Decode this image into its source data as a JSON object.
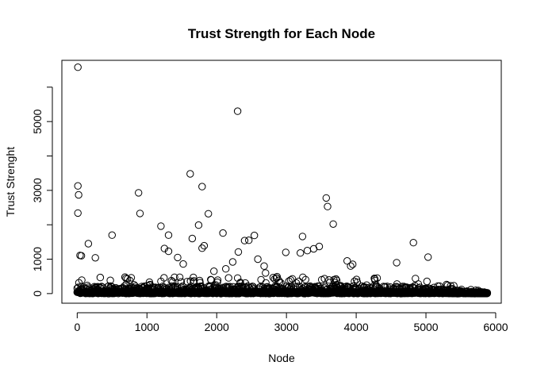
{
  "chart_data": {
    "type": "scatter",
    "title": "Trust Strength for Each Node",
    "xlabel": "Node",
    "ylabel": "Trust Strenght",
    "xlim": [
      -220,
      6080
    ],
    "ylim": [
      -280,
      6780
    ],
    "xticks": [
      0,
      1000,
      2000,
      3000,
      4000,
      5000,
      6000
    ],
    "yticks": [
      0,
      1000,
      3000,
      5000
    ],
    "ytick_marks": [
      0,
      1000,
      2000,
      3000,
      4000,
      5000,
      6000
    ],
    "grid": false,
    "marker": "open-circle",
    "n_nodes_approx": 5880,
    "highlighted_points": {
      "x": [
        10,
        2300,
        1620,
        10,
        1790,
        20,
        880,
        3570,
        10,
        3590,
        1880,
        900,
        3670,
        1200,
        1740,
        1310,
        2540,
        500,
        2460,
        2090,
        3230,
        1820,
        2400,
        3470,
        1650,
        4820,
        160,
        1790,
        1250,
        1310,
        2310,
        5030,
        40,
        2990,
        3200,
        3300,
        3390,
        260,
        1440,
        2590,
        4580,
        2230,
        3870,
        60,
        2680,
        1520,
        3950,
        3920,
        2130,
        1960,
        2700
      ],
      "y": [
        6580,
        5300,
        3480,
        3130,
        3110,
        2870,
        2930,
        2780,
        2340,
        2530,
        2320,
        2330,
        2020,
        1960,
        1990,
        1700,
        1690,
        1700,
        1550,
        1760,
        1660,
        1390,
        1540,
        1370,
        1600,
        1480,
        1450,
        1320,
        1310,
        1230,
        1210,
        1060,
        1110,
        1200,
        1180,
        1250,
        1300,
        1040,
        1050,
        1000,
        900,
        920,
        950,
        1100,
        800,
        860,
        850,
        800,
        720,
        650,
        600
      ]
    }
  }
}
